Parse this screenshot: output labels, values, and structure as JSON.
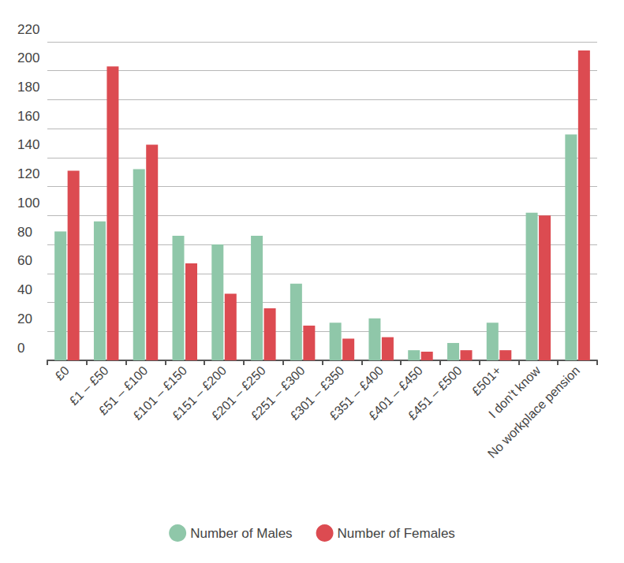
{
  "chart_data": {
    "type": "bar",
    "categories": [
      "£0",
      "£1 – £50",
      "£51 – £100",
      "£101 – £150",
      "£151 – £200",
      "£201 – £250",
      "£251 – £300",
      "£301 – £350",
      "£351 – £400",
      "£401 – £450",
      "£451 – £500",
      "£501+",
      "I don’t know",
      "No workplace pension"
    ],
    "series": [
      {
        "name": "Number of Males",
        "color": "#8fc7a9",
        "values": [
          89,
          96,
          132,
          86,
          80,
          86,
          53,
          26,
          29,
          7,
          12,
          26,
          102,
          156
        ]
      },
      {
        "name": "Number of Females",
        "color": "#dc4b51",
        "values": [
          131,
          203,
          149,
          67,
          46,
          36,
          24,
          15,
          16,
          6,
          7,
          7,
          100,
          214
        ]
      }
    ],
    "ylim": [
      0,
      220
    ],
    "yticks": [
      0,
      20,
      40,
      60,
      80,
      100,
      120,
      140,
      160,
      180,
      200,
      220
    ],
    "grid": true,
    "legend": "bottom"
  }
}
